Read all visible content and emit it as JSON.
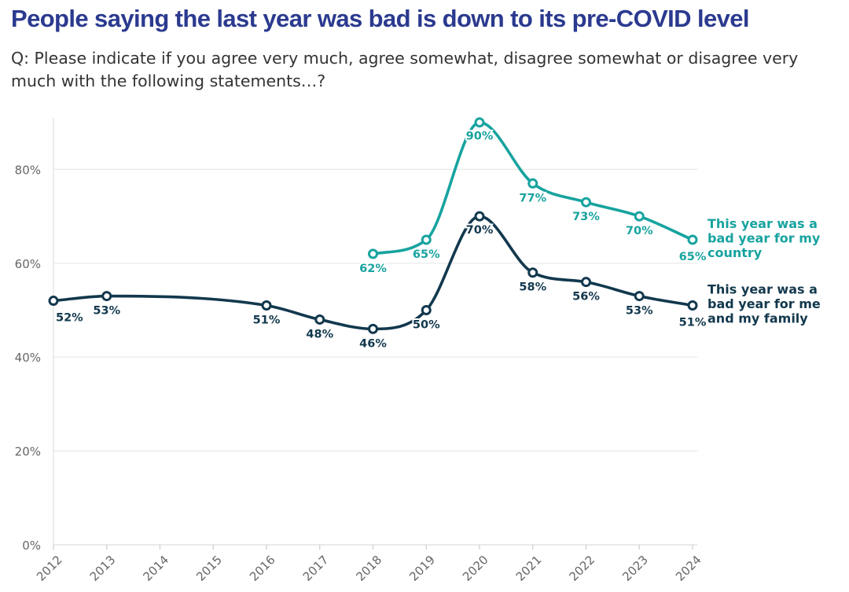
{
  "title": "People saying the last year was bad is down to its pre-COVID level",
  "subtitle": "Q: Please indicate if you agree very much, agree somewhat, disagree somewhat or disagree very much with the following statements…?",
  "chart_data": {
    "type": "line",
    "title": "People saying the last year was bad is down to its pre-COVID level",
    "x": [
      2012,
      2013,
      2014,
      2015,
      2016,
      2017,
      2018,
      2019,
      2020,
      2021,
      2022,
      2023,
      2024
    ],
    "x_tick_labels": [
      "2012",
      "2013",
      "2014",
      "2015",
      "2016",
      "2017",
      "2018",
      "2019",
      "2020",
      "2021",
      "2022",
      "2023",
      "2024"
    ],
    "ylim": [
      0,
      90
    ],
    "y_ticks": [
      0,
      20,
      40,
      60,
      80
    ],
    "y_tick_labels": [
      "0%",
      "20%",
      "40%",
      "60%",
      "80%"
    ],
    "grid": true,
    "series": [
      {
        "name": "This year was a bad year for my country",
        "legend_lines": [
          "This year was a",
          "bad year for my",
          "country"
        ],
        "color": "#17a39f",
        "points": [
          {
            "x": 2018,
            "y": 62,
            "label": "62%"
          },
          {
            "x": 2019,
            "y": 65,
            "label": "65%"
          },
          {
            "x": 2020,
            "y": 90,
            "label": "90%"
          },
          {
            "x": 2021,
            "y": 77,
            "label": "77%"
          },
          {
            "x": 2022,
            "y": 73,
            "label": "73%"
          },
          {
            "x": 2023,
            "y": 70,
            "label": "70%"
          },
          {
            "x": 2024,
            "y": 65,
            "label": "65%"
          }
        ]
      },
      {
        "name": "This year was a bad year for me and my family",
        "legend_lines": [
          "This year was a",
          "bad year for me",
          "and my family"
        ],
        "color": "#12384d",
        "points": [
          {
            "x": 2012,
            "y": 52,
            "label": "52%"
          },
          {
            "x": 2013,
            "y": 53,
            "label": "53%"
          },
          {
            "x": 2016,
            "y": 51,
            "label": "51%"
          },
          {
            "x": 2017,
            "y": 48,
            "label": "48%"
          },
          {
            "x": 2018,
            "y": 46,
            "label": "46%"
          },
          {
            "x": 2019,
            "y": 50,
            "label": "50%"
          },
          {
            "x": 2020,
            "y": 70,
            "label": "70%"
          },
          {
            "x": 2021,
            "y": 58,
            "label": "58%"
          },
          {
            "x": 2022,
            "y": 56,
            "label": "56%"
          },
          {
            "x": 2023,
            "y": 53,
            "label": "53%"
          },
          {
            "x": 2024,
            "y": 51,
            "label": "51%"
          }
        ]
      }
    ]
  }
}
